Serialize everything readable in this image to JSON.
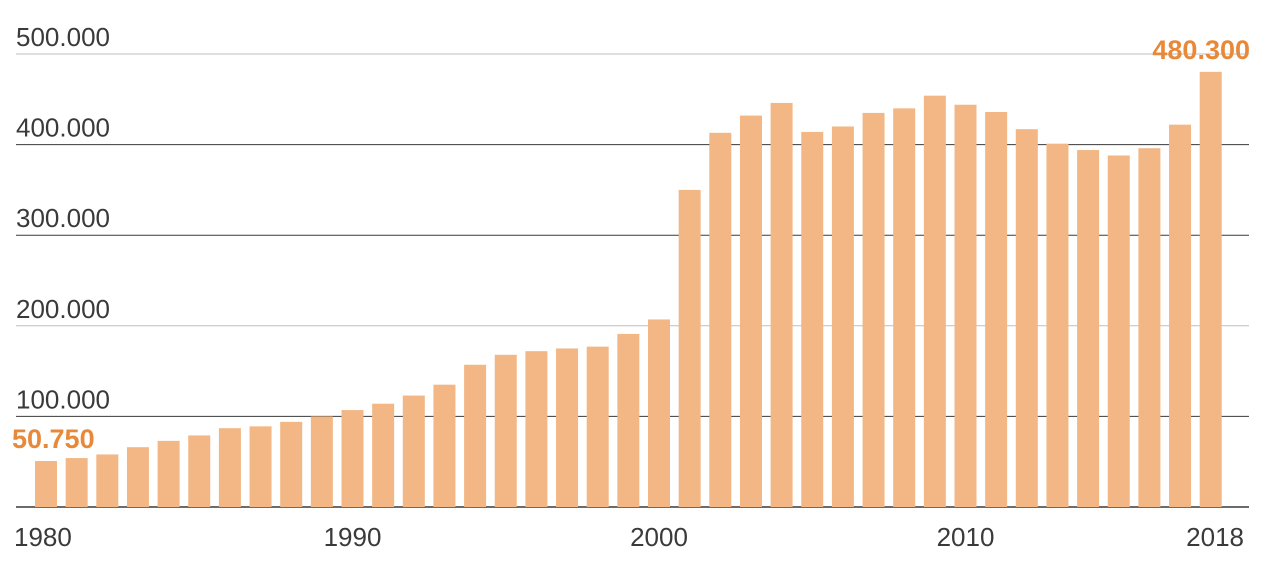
{
  "chart_data": {
    "type": "bar",
    "x": [
      1980,
      1981,
      1982,
      1983,
      1984,
      1985,
      1986,
      1987,
      1988,
      1989,
      1990,
      1991,
      1992,
      1993,
      1994,
      1995,
      1996,
      1997,
      1998,
      1999,
      2000,
      2001,
      2002,
      2003,
      2004,
      2005,
      2006,
      2007,
      2008,
      2009,
      2010,
      2011,
      2012,
      2013,
      2014,
      2015,
      2016,
      2017,
      2018
    ],
    "values": [
      50750,
      54000,
      58000,
      66000,
      73000,
      79000,
      87000,
      89000,
      94000,
      100000,
      107000,
      114000,
      123000,
      135000,
      157000,
      168000,
      172000,
      175000,
      177000,
      191000,
      207000,
      350000,
      413000,
      432000,
      446000,
      414000,
      420000,
      435000,
      440000,
      454000,
      444000,
      436000,
      417000,
      401000,
      394000,
      388000,
      396000,
      422000,
      480300
    ],
    "ylim": [
      0,
      500000
    ],
    "yticks": [
      100000,
      200000,
      300000,
      400000,
      500000
    ],
    "ytick_labels": [
      "100.000",
      "200.000",
      "300.000",
      "400.000",
      "500.000"
    ],
    "xtick_years": [
      1980,
      1990,
      2000,
      2010,
      2018
    ],
    "xtick_labels": [
      "1980",
      "1990",
      "2000",
      "2010",
      "2018"
    ],
    "data_labels": [
      {
        "year": 1980,
        "text": "50.750"
      },
      {
        "year": 2018,
        "text": "480.300"
      }
    ],
    "title": "",
    "xlabel": "",
    "ylabel": "",
    "grid": true,
    "legend": "none",
    "colors": {
      "bar": "#f2b784",
      "label": "#e8893a",
      "grid": "#3a3a3a",
      "grid_light": "#bfbfbf",
      "text": "#3a3a3a"
    }
  }
}
